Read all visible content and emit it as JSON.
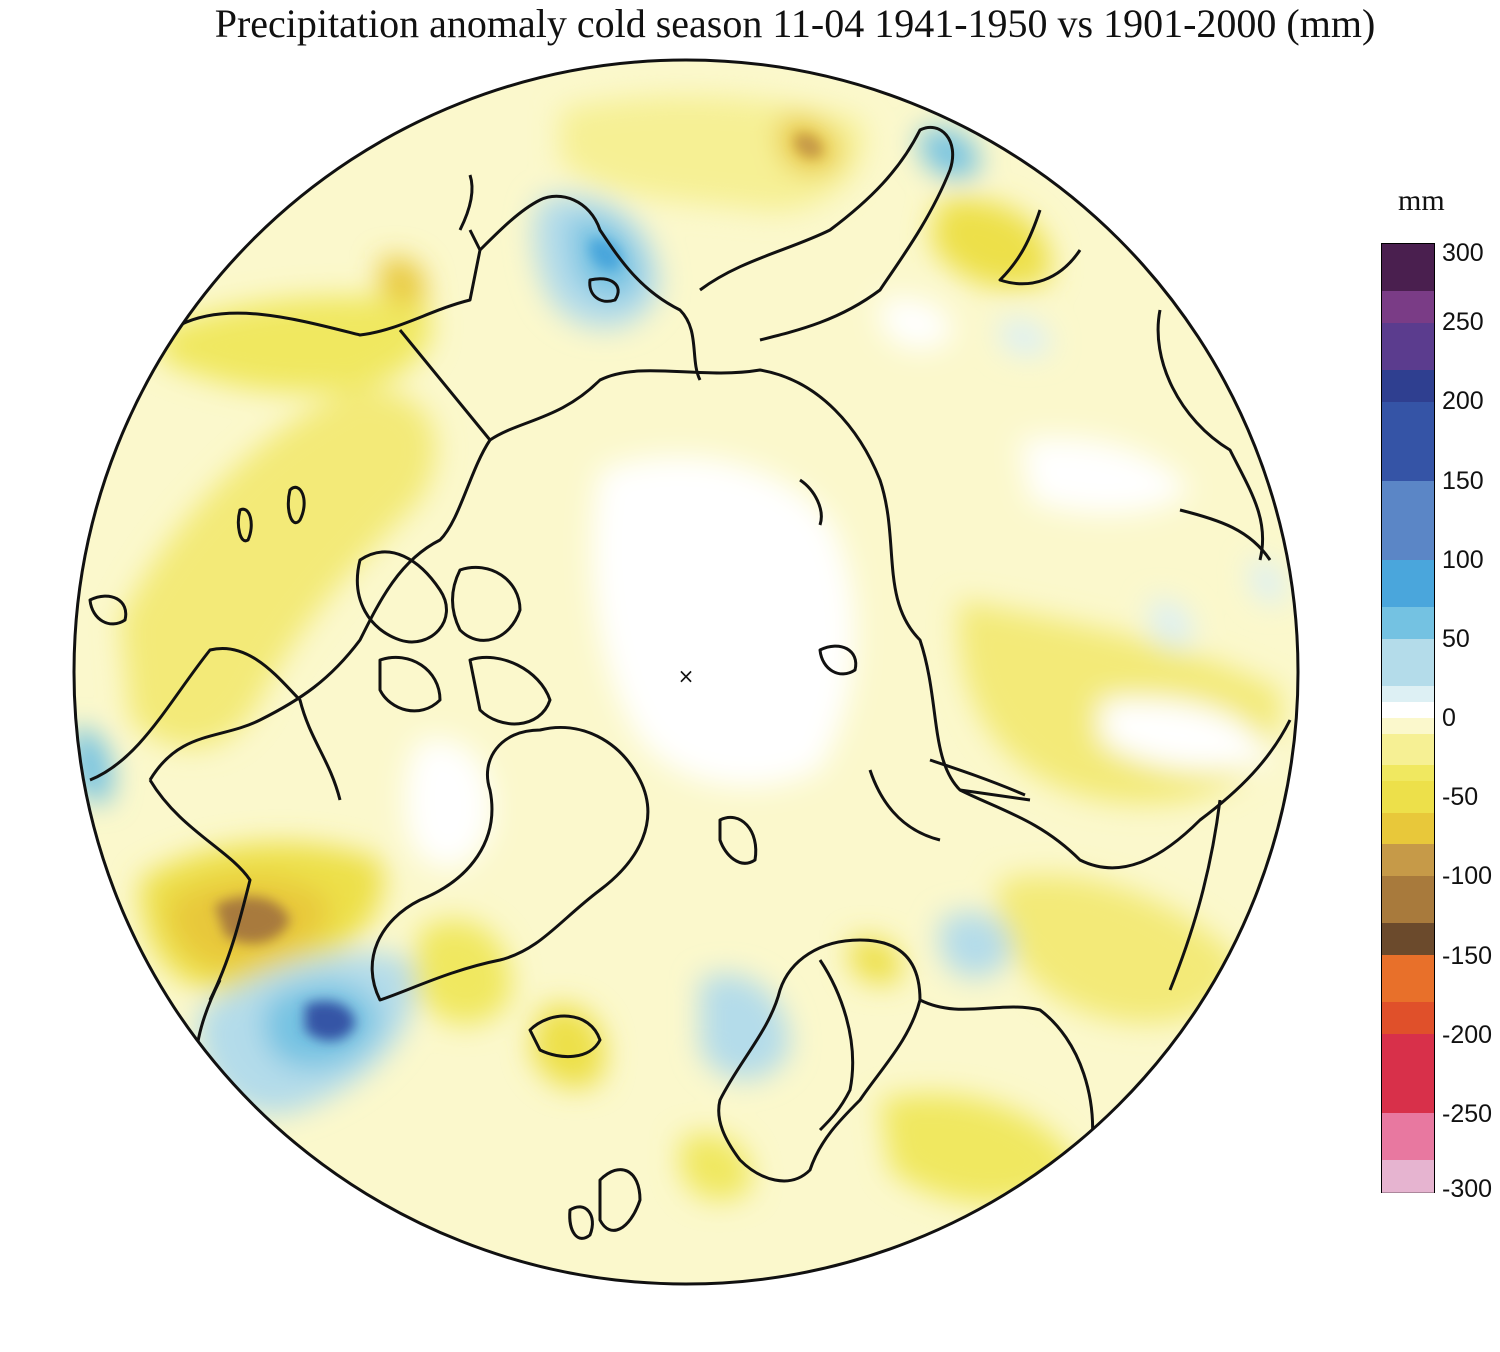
{
  "title": "Precipitation anomaly cold season 11-04 1941-1950 vs 1901-2000 (mm)",
  "legend": {
    "unit": "mm",
    "ticks": [
      "300",
      "250",
      "200",
      "150",
      "100",
      "50",
      "0",
      "-50",
      "-100",
      "-150",
      "-200",
      "-250",
      "-300"
    ],
    "range": [
      -300,
      300
    ],
    "steps": 60,
    "colors": {
      "300": "#141414",
      "270": "#4a1f4f",
      "250": "#7a3c86",
      "225": "#5b3c8e",
      "200": "#2f3f90",
      "150": "#3554a6",
      "100": "#5b86c6",
      "75": "#4aa6dc",
      "50": "#74c2e2",
      "25": "#b4dcea",
      "10": "#ddf0f4",
      "0": "#ffffff",
      "-10": "#fbf8cc",
      "-25": "#f6f094",
      "-40": "#f0e860",
      "-55": "#ede04a",
      "-75": "#e8c83a",
      "-100": "#c69a48",
      "-125": "#a87a3c",
      "-150": "#6b4a2c",
      "-175": "#e8702a",
      "-200": "#e0502a",
      "-250": "#d8304a",
      "-275": "#e878a0",
      "-300": "#e6b4d0"
    }
  },
  "map": {
    "projection": "north-polar-stereographic",
    "background_color": "#fbf8cc",
    "coast_color": "#111111",
    "pole_marker": "×"
  }
}
